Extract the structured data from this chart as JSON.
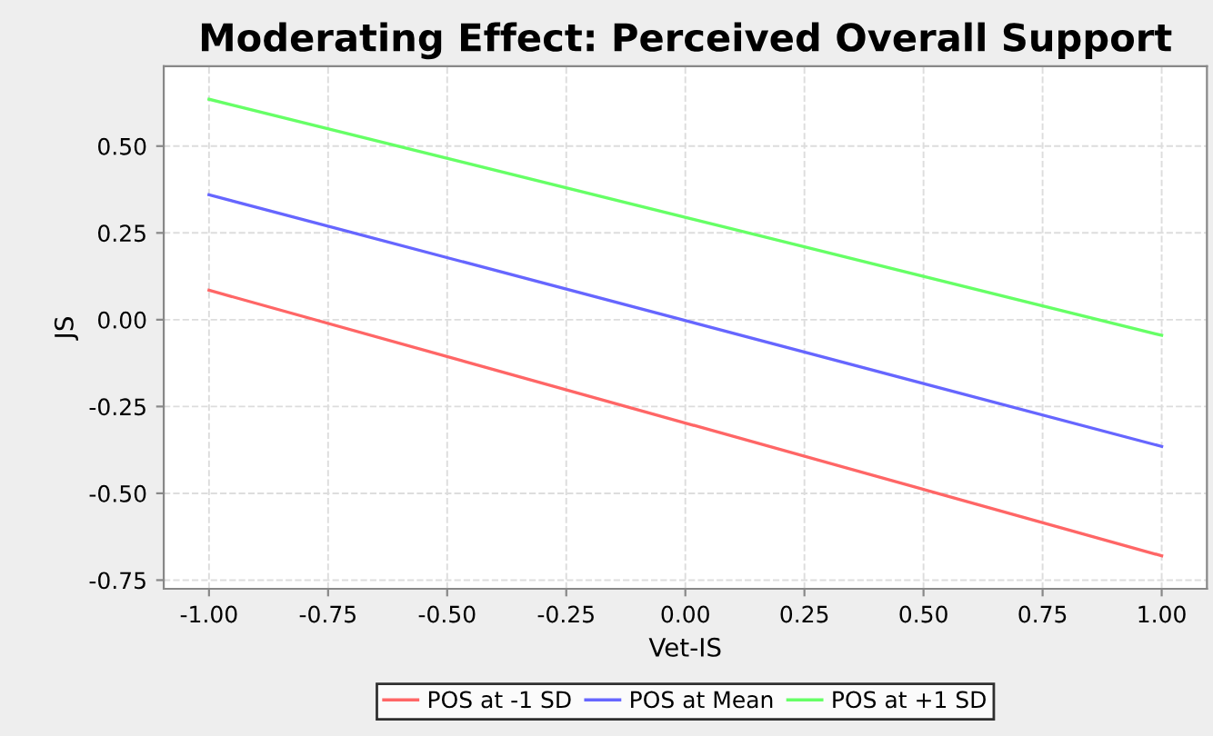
{
  "chart_data": {
    "type": "line",
    "title": "Moderating Effect: Perceived Overall Support",
    "xlabel": "Vet-IS",
    "ylabel": "JS",
    "x": [
      -1.0,
      1.0
    ],
    "series": [
      {
        "name": "POS at -1 SD",
        "color": "#ff6666",
        "values": [
          0.085,
          -0.68
        ]
      },
      {
        "name": "POS at Mean",
        "color": "#6666ff",
        "values": [
          0.36,
          -0.365
        ]
      },
      {
        "name": "POS at +1 SD",
        "color": "#66ff66",
        "values": [
          0.635,
          -0.045
        ]
      }
    ],
    "xlim": [
      -1.095,
      1.095
    ],
    "ylim": [
      -0.775,
      0.73
    ],
    "xticks": [
      {
        "value": -1.0,
        "label": "-1.00"
      },
      {
        "value": -0.75,
        "label": "-0.75"
      },
      {
        "value": -0.5,
        "label": "-0.50"
      },
      {
        "value": -0.25,
        "label": "-0.25"
      },
      {
        "value": 0.0,
        "label": "0.00"
      },
      {
        "value": 0.25,
        "label": "0.25"
      },
      {
        "value": 0.5,
        "label": "0.50"
      },
      {
        "value": 0.75,
        "label": "0.75"
      },
      {
        "value": 1.0,
        "label": "1.00"
      }
    ],
    "yticks": [
      {
        "value": -0.75,
        "label": "-0.75"
      },
      {
        "value": -0.5,
        "label": "-0.50"
      },
      {
        "value": -0.25,
        "label": "-0.25"
      },
      {
        "value": 0.0,
        "label": "0.00"
      },
      {
        "value": 0.25,
        "label": "0.25"
      },
      {
        "value": 0.5,
        "label": "0.50"
      }
    ],
    "grid": true,
    "legend": "bottom",
    "marker": "none",
    "line_style": "solid"
  }
}
